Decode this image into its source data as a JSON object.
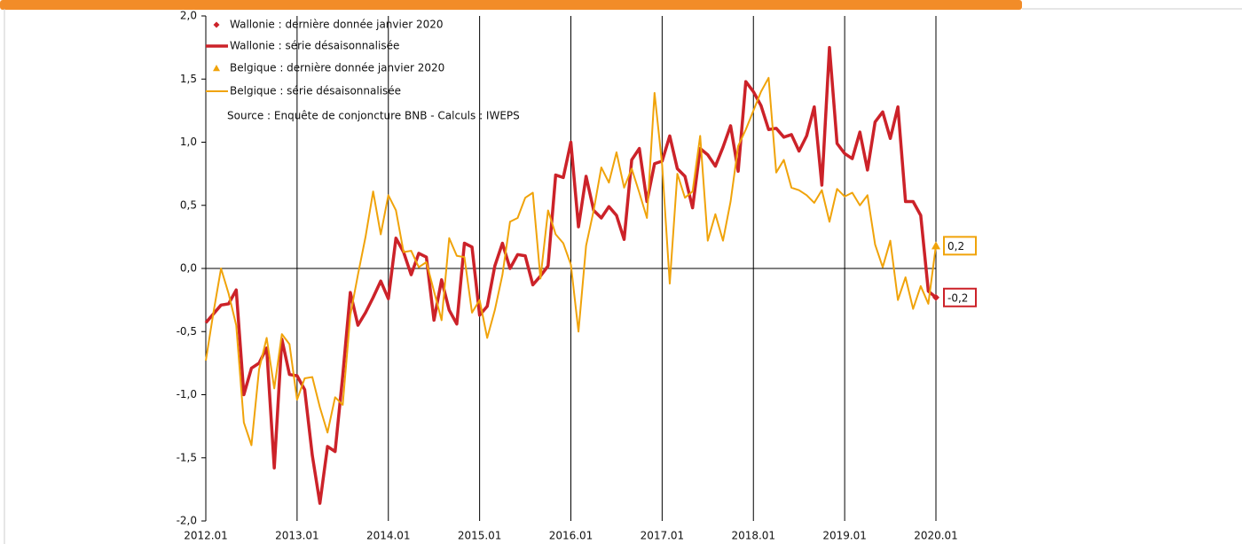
{
  "chart_data": {
    "type": "line",
    "source": "Source : Enquête de conjoncture BNB - Calculs : IWEPS",
    "categories": [
      "2012.01",
      null,
      null,
      null,
      null,
      null,
      null,
      null,
      null,
      null,
      null,
      null,
      "2013.01",
      null,
      null,
      null,
      null,
      null,
      null,
      null,
      null,
      null,
      null,
      null,
      "2014.01",
      null,
      null,
      null,
      null,
      null,
      null,
      null,
      null,
      null,
      null,
      null,
      "2015.01",
      null,
      null,
      null,
      null,
      null,
      null,
      null,
      null,
      null,
      null,
      null,
      "2016.01",
      null,
      null,
      null,
      null,
      null,
      null,
      null,
      null,
      null,
      null,
      null,
      "2017.01",
      null,
      null,
      null,
      null,
      null,
      null,
      null,
      null,
      null,
      null,
      null,
      "2018.01",
      null,
      null,
      null,
      null,
      null,
      null,
      null,
      null,
      null,
      null,
      null,
      "2019.01",
      null,
      null,
      null,
      null,
      null,
      null,
      null,
      null,
      null,
      null,
      null,
      "2020.01"
    ],
    "ylim": [
      -2,
      2
    ],
    "yticks": [
      {
        "value": 2,
        "label": "2,0"
      },
      {
        "value": 1.5,
        "label": "1,5"
      },
      {
        "value": 1,
        "label": "1,0"
      },
      {
        "value": 0.5,
        "label": "0,5"
      },
      {
        "value": 0,
        "label": "0,0"
      },
      {
        "value": -0.5,
        "label": "-0,5"
      },
      {
        "value": -1,
        "label": "-1,0"
      },
      {
        "value": -1.5,
        "label": "-1,5"
      },
      {
        "value": -2,
        "label": "-2,0"
      }
    ],
    "grid": "x",
    "series": [
      {
        "name": "Wallonie : dernière donnée janvier 2020",
        "color": "#cc2229",
        "marker": "diamond",
        "values": [
          null,
          null,
          null,
          null,
          null,
          null,
          null,
          null,
          null,
          null,
          null,
          null,
          null,
          null,
          null,
          null,
          null,
          null,
          null,
          null,
          null,
          null,
          null,
          null,
          null,
          null,
          null,
          null,
          null,
          null,
          null,
          null,
          null,
          null,
          null,
          null,
          null,
          null,
          null,
          null,
          null,
          null,
          null,
          null,
          null,
          null,
          null,
          null,
          null,
          null,
          null,
          null,
          null,
          null,
          null,
          null,
          null,
          null,
          null,
          null,
          null,
          null,
          null,
          null,
          null,
          null,
          null,
          null,
          null,
          null,
          null,
          null,
          null,
          null,
          null,
          null,
          null,
          null,
          null,
          null,
          null,
          null,
          null,
          null,
          null,
          null,
          null,
          null,
          null,
          null,
          null,
          null,
          null,
          null,
          null,
          null,
          -0.23
        ],
        "value_labels": [
          null,
          null,
          null,
          null,
          null,
          null,
          null,
          null,
          null,
          null,
          null,
          null,
          null,
          null,
          null,
          null,
          null,
          null,
          null,
          null,
          null,
          null,
          null,
          null,
          null,
          null,
          null,
          null,
          null,
          null,
          null,
          null,
          null,
          null,
          null,
          null,
          null,
          null,
          null,
          null,
          null,
          null,
          null,
          null,
          null,
          null,
          null,
          null,
          null,
          null,
          null,
          null,
          null,
          null,
          null,
          null,
          null,
          null,
          null,
          null,
          null,
          null,
          null,
          null,
          null,
          null,
          null,
          null,
          null,
          null,
          null,
          null,
          null,
          null,
          null,
          null,
          null,
          null,
          null,
          null,
          null,
          null,
          null,
          null,
          null,
          null,
          null,
          null,
          null,
          null,
          null,
          null,
          null,
          null,
          null,
          null,
          "-0,2"
        ]
      },
      {
        "name": "Wallonie : série désaisonnalisée",
        "color": "#cc2229",
        "width": 3.5,
        "values": [
          -0.43,
          -0.36,
          -0.29,
          -0.28,
          -0.17,
          -1.0,
          -0.79,
          -0.75,
          -0.63,
          -1.58,
          -0.56,
          -0.84,
          -0.85,
          -0.96,
          -1.48,
          -1.86,
          -1.41,
          -1.45,
          -0.85,
          -0.19,
          -0.45,
          -0.35,
          -0.23,
          -0.1,
          -0.24,
          0.24,
          0.13,
          -0.05,
          0.12,
          0.09,
          -0.41,
          -0.09,
          -0.33,
          -0.44,
          0.2,
          0.17,
          -0.37,
          -0.3,
          0.02,
          0.2,
          0.0,
          0.11,
          0.1,
          -0.13,
          -0.06,
          0.02,
          0.74,
          0.72,
          1.0,
          0.33,
          0.73,
          0.46,
          0.4,
          0.49,
          0.42,
          0.23,
          0.86,
          0.95,
          0.53,
          0.83,
          0.85,
          1.05,
          0.79,
          0.73,
          0.48,
          0.95,
          0.9,
          0.81,
          0.96,
          1.13,
          0.77,
          1.48,
          1.4,
          1.29,
          1.1,
          1.11,
          1.04,
          1.06,
          0.93,
          1.05,
          1.28,
          0.66,
          1.75,
          0.99,
          0.91,
          0.87,
          1.08,
          0.78,
          1.16,
          1.24,
          1.03,
          1.28,
          0.53,
          0.53,
          0.42,
          -0.18,
          -0.23
        ]
      },
      {
        "name": "Belgique : dernière donnée janvier 2020",
        "color": "#f0a30a",
        "marker": "triangle",
        "values": [
          null,
          null,
          null,
          null,
          null,
          null,
          null,
          null,
          null,
          null,
          null,
          null,
          null,
          null,
          null,
          null,
          null,
          null,
          null,
          null,
          null,
          null,
          null,
          null,
          null,
          null,
          null,
          null,
          null,
          null,
          null,
          null,
          null,
          null,
          null,
          null,
          null,
          null,
          null,
          null,
          null,
          null,
          null,
          null,
          null,
          null,
          null,
          null,
          null,
          null,
          null,
          null,
          null,
          null,
          null,
          null,
          null,
          null,
          null,
          null,
          null,
          null,
          null,
          null,
          null,
          null,
          null,
          null,
          null,
          null,
          null,
          null,
          null,
          null,
          null,
          null,
          null,
          null,
          null,
          null,
          null,
          null,
          null,
          null,
          null,
          null,
          null,
          null,
          null,
          null,
          null,
          null,
          null,
          null,
          null,
          null,
          0.18
        ],
        "value_labels": [
          null,
          null,
          null,
          null,
          null,
          null,
          null,
          null,
          null,
          null,
          null,
          null,
          null,
          null,
          null,
          null,
          null,
          null,
          null,
          null,
          null,
          null,
          null,
          null,
          null,
          null,
          null,
          null,
          null,
          null,
          null,
          null,
          null,
          null,
          null,
          null,
          null,
          null,
          null,
          null,
          null,
          null,
          null,
          null,
          null,
          null,
          null,
          null,
          null,
          null,
          null,
          null,
          null,
          null,
          null,
          null,
          null,
          null,
          null,
          null,
          null,
          null,
          null,
          null,
          null,
          null,
          null,
          null,
          null,
          null,
          null,
          null,
          null,
          null,
          null,
          null,
          null,
          null,
          null,
          null,
          null,
          null,
          null,
          null,
          null,
          null,
          null,
          null,
          null,
          null,
          null,
          null,
          null,
          null,
          null,
          null,
          "0,2"
        ]
      },
      {
        "name": "Belgique : série désaisonnalisée",
        "color": "#f0a30a",
        "width": 2,
        "values": [
          -0.73,
          -0.35,
          0.0,
          -0.2,
          -0.45,
          -1.22,
          -1.4,
          -0.8,
          -0.55,
          -0.95,
          -0.52,
          -0.6,
          -1.04,
          -0.87,
          -0.86,
          -1.1,
          -1.3,
          -1.02,
          -1.08,
          -0.37,
          -0.05,
          0.25,
          0.61,
          0.27,
          0.58,
          0.46,
          0.13,
          0.14,
          0.01,
          0.05,
          -0.18,
          -0.41,
          0.24,
          0.1,
          0.09,
          -0.35,
          -0.25,
          -0.55,
          -0.33,
          -0.05,
          0.37,
          0.4,
          0.56,
          0.6,
          -0.08,
          0.46,
          0.27,
          0.2,
          0.03,
          -0.5,
          0.18,
          0.46,
          0.8,
          0.68,
          0.92,
          0.64,
          0.79,
          0.6,
          0.4,
          1.39,
          0.82,
          -0.12,
          0.75,
          0.56,
          0.61,
          1.05,
          0.22,
          0.43,
          0.22,
          0.53,
          0.97,
          1.1,
          1.25,
          1.4,
          1.51,
          0.76,
          0.86,
          0.64,
          0.62,
          0.58,
          0.52,
          0.62,
          0.37,
          0.63,
          0.57,
          0.6,
          0.5,
          0.58,
          0.19,
          0.01,
          0.22,
          -0.25,
          -0.07,
          -0.32,
          -0.14,
          -0.28,
          0.18
        ]
      }
    ]
  }
}
